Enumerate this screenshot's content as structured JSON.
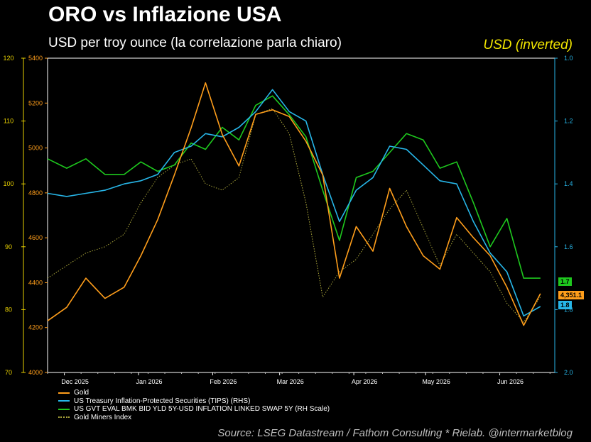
{
  "header": {
    "title": "ORO vs Inflazione USA",
    "subtitle": "USD per troy ounce (la correlazione parla chiaro)",
    "right_note": "USD (inverted)"
  },
  "footer": {
    "source": "Source: LSEG Datastream / Fathom Consulting * Rielab. @intermarketblog"
  },
  "chart_data": {
    "type": "line",
    "x_ticks": [
      "Dec 2025",
      "Jan 2026",
      "Feb 2026",
      "Mar 2026",
      "Apr 2026",
      "May 2026",
      "Jun 2026"
    ],
    "x_range": [
      "2025-11-24",
      "2026-06-24"
    ],
    "axes": {
      "gold": {
        "ticks": [
          "4000",
          "4200",
          "4400",
          "4600",
          "4800",
          "5000",
          "5200",
          "5400"
        ],
        "range": [
          4000,
          5400
        ],
        "color": "#ff9e1b"
      },
      "miners": {
        "ticks": [
          "70",
          "80",
          "90",
          "100",
          "110",
          "120"
        ],
        "range": [
          70,
          120
        ],
        "color": "#e8d000"
      },
      "right": {
        "ticks": [
          "1.0",
          "1.2",
          "1.4",
          "1.6",
          "1.8",
          "2.0"
        ],
        "range": [
          1.0,
          2.0
        ],
        "inverted": true,
        "color": "#27b6e8"
      }
    },
    "grid": false,
    "legend_position": "bottom-left",
    "series": [
      {
        "name": "Gold",
        "axis": "gold",
        "color": "#ff9e1b",
        "style": "solid",
        "last_label": "4,351.1",
        "x": [
          "2025-11-24",
          "2025-12-02",
          "2025-12-10",
          "2025-12-18",
          "2025-12-26",
          "2026-01-02",
          "2026-01-09",
          "2026-01-16",
          "2026-01-23",
          "2026-01-29",
          "2026-02-05",
          "2026-02-12",
          "2026-02-19",
          "2026-02-26",
          "2026-03-05",
          "2026-03-12",
          "2026-03-19",
          "2026-03-26",
          "2026-04-02",
          "2026-04-09",
          "2026-04-16",
          "2026-04-23",
          "2026-04-30",
          "2026-05-07",
          "2026-05-14",
          "2026-05-21",
          "2026-05-28",
          "2026-06-04",
          "2026-06-11",
          "2026-06-18"
        ],
        "y": [
          4230,
          4290,
          4420,
          4330,
          4380,
          4520,
          4680,
          4880,
          5090,
          5290,
          5060,
          4920,
          5150,
          5170,
          5140,
          5030,
          4880,
          4420,
          4650,
          4540,
          4820,
          4650,
          4520,
          4460,
          4690,
          4600,
          4520,
          4380,
          4210,
          4351
        ]
      },
      {
        "name": "US Treasury Inflation-Protected Securities (TIPS) (RHS)",
        "axis": "right",
        "color": "#27b6e8",
        "style": "solid",
        "last_label": "1.8",
        "x": [
          "2025-11-24",
          "2025-12-02",
          "2025-12-10",
          "2025-12-18",
          "2025-12-26",
          "2026-01-02",
          "2026-01-09",
          "2026-01-16",
          "2026-01-23",
          "2026-01-29",
          "2026-02-05",
          "2026-02-12",
          "2026-02-19",
          "2026-02-26",
          "2026-03-05",
          "2026-03-12",
          "2026-03-19",
          "2026-03-26",
          "2026-04-02",
          "2026-04-09",
          "2026-04-16",
          "2026-04-23",
          "2026-04-30",
          "2026-05-07",
          "2026-05-14",
          "2026-05-21",
          "2026-05-28",
          "2026-06-04",
          "2026-06-11",
          "2026-06-18"
        ],
        "y": [
          1.43,
          1.44,
          1.43,
          1.42,
          1.4,
          1.39,
          1.37,
          1.3,
          1.28,
          1.24,
          1.25,
          1.22,
          1.17,
          1.1,
          1.17,
          1.2,
          1.37,
          1.52,
          1.42,
          1.38,
          1.28,
          1.29,
          1.34,
          1.39,
          1.4,
          1.52,
          1.62,
          1.68,
          1.82,
          1.79
        ]
      },
      {
        "name": "US GVT EVAL BMK BID YLD 5Y-USD INFLATION LINKED SWAP 5Y (RH Scale)",
        "axis": "right",
        "color": "#1ec81e",
        "style": "solid",
        "last_label": "1.7",
        "x": [
          "2025-11-24",
          "2025-12-02",
          "2025-12-10",
          "2025-12-18",
          "2025-12-26",
          "2026-01-02",
          "2026-01-09",
          "2026-01-16",
          "2026-01-23",
          "2026-01-29",
          "2026-02-05",
          "2026-02-12",
          "2026-02-19",
          "2026-02-26",
          "2026-03-05",
          "2026-03-12",
          "2026-03-19",
          "2026-03-26",
          "2026-04-02",
          "2026-04-09",
          "2026-04-16",
          "2026-04-23",
          "2026-04-30",
          "2026-05-07",
          "2026-05-14",
          "2026-05-21",
          "2026-05-28",
          "2026-06-04",
          "2026-06-11",
          "2026-06-18"
        ],
        "y": [
          1.32,
          1.35,
          1.32,
          1.37,
          1.37,
          1.33,
          1.36,
          1.34,
          1.27,
          1.29,
          1.22,
          1.26,
          1.15,
          1.12,
          1.18,
          1.25,
          1.42,
          1.58,
          1.38,
          1.36,
          1.3,
          1.24,
          1.26,
          1.35,
          1.33,
          1.46,
          1.6,
          1.51,
          1.7,
          1.7
        ]
      },
      {
        "name": "Gold Miners Index",
        "axis": "miners",
        "color": "#a8a43a",
        "style": "dotted",
        "x": [
          "2025-11-24",
          "2025-12-02",
          "2025-12-10",
          "2025-12-18",
          "2025-12-26",
          "2026-01-02",
          "2026-01-09",
          "2026-01-16",
          "2026-01-23",
          "2026-01-29",
          "2026-02-05",
          "2026-02-12",
          "2026-02-19",
          "2026-02-26",
          "2026-03-05",
          "2026-03-12",
          "2026-03-19",
          "2026-03-26",
          "2026-04-02",
          "2026-04-09",
          "2026-04-16",
          "2026-04-23",
          "2026-04-30",
          "2026-05-07",
          "2026-05-14",
          "2026-05-21",
          "2026-05-28",
          "2026-06-04",
          "2026-06-11",
          "2026-06-18"
        ],
        "y": [
          85,
          87,
          89,
          90,
          92,
          97,
          101,
          103,
          104,
          100,
          99,
          101,
          111,
          112,
          108,
          97,
          82,
          86,
          88,
          92,
          96,
          99,
          93,
          87,
          92,
          89,
          86,
          81,
          78,
          82
        ]
      }
    ]
  }
}
